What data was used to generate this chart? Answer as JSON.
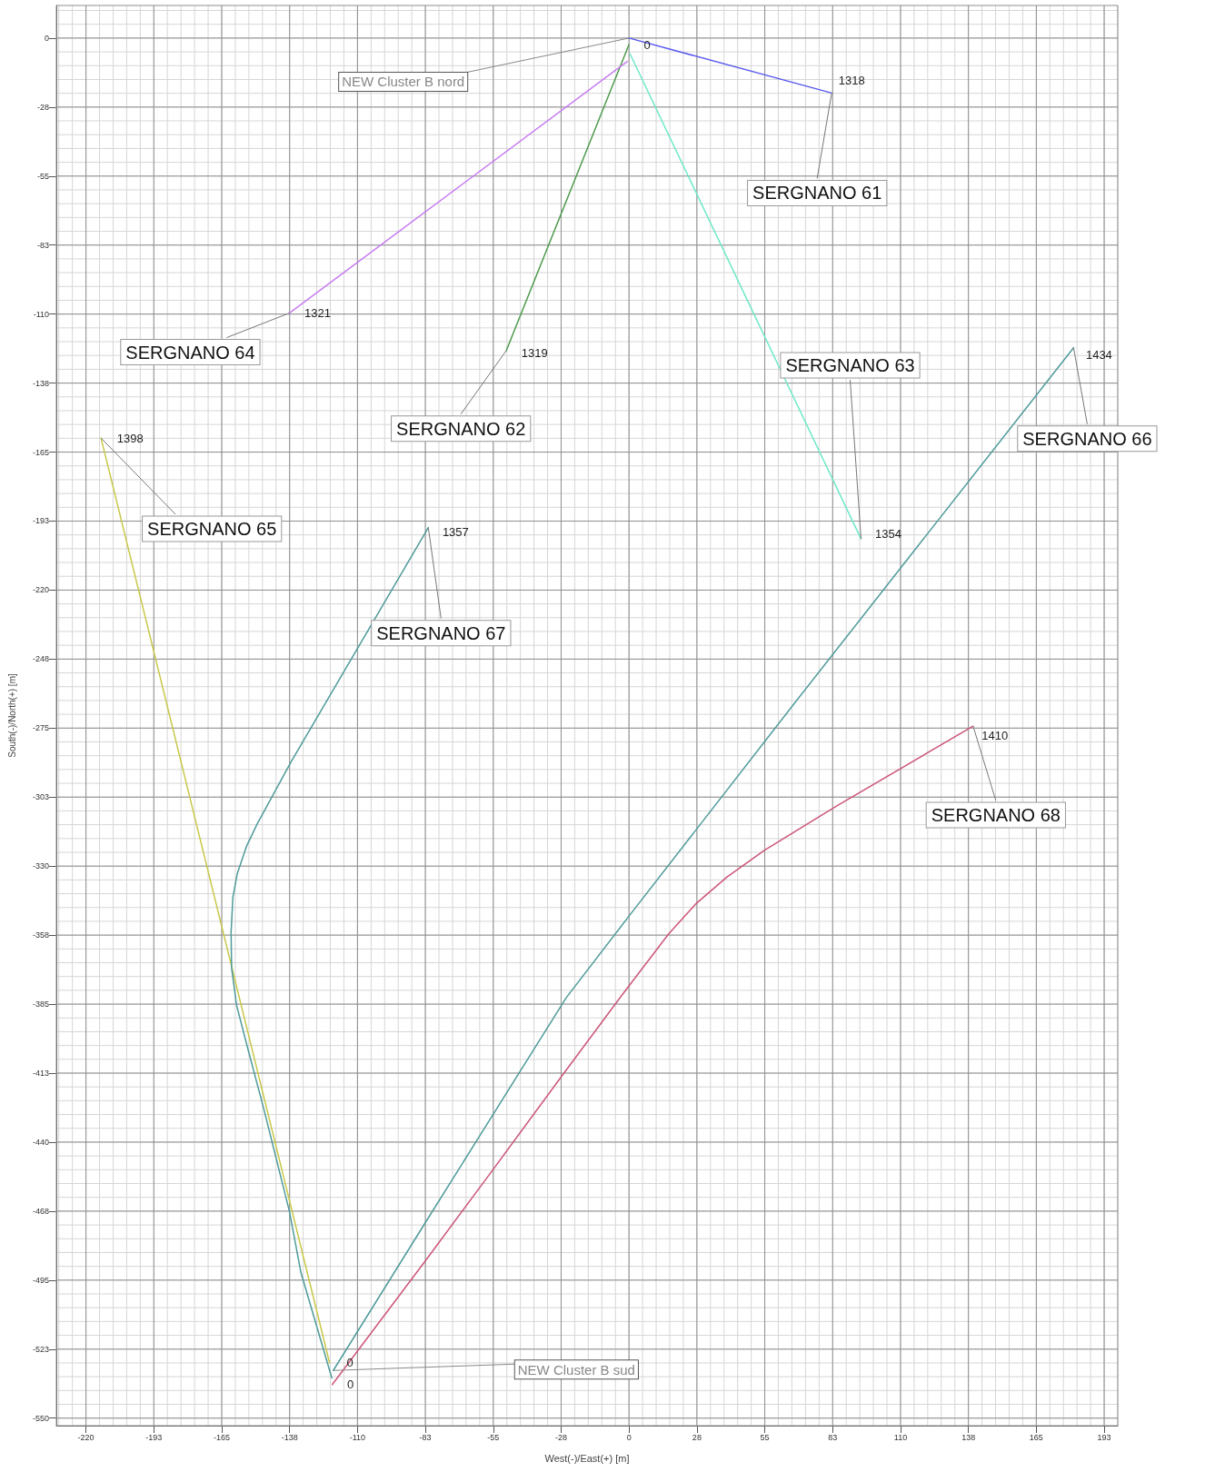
{
  "chart_data": {
    "type": "line",
    "xlabel": "West(-)/East(+) [m]",
    "ylabel": "South(-)/North(+) [m]",
    "xlim": [
      -232,
      198
    ],
    "ylim": [
      -553,
      13
    ],
    "xticks": [
      -220,
      {
        "value": -192.5,
        "label": "-193"
      },
      -165,
      {
        "value": -137.5,
        "label": "-138"
      },
      -110,
      {
        "value": -82.5,
        "label": "-83"
      },
      -55,
      {
        "value": -27.5,
        "label": "-28"
      },
      0,
      {
        "value": 27.5,
        "label": "28"
      },
      55,
      {
        "value": 82.5,
        "label": "83"
      },
      110,
      {
        "value": 137.5,
        "label": "138"
      },
      165,
      {
        "value": 192.5,
        "label": "193"
      }
    ],
    "yticks": [
      0,
      {
        "value": -27.5,
        "label": "-28"
      },
      -55,
      {
        "value": -82.5,
        "label": "-83"
      },
      -110,
      {
        "value": -137.5,
        "label": "-138"
      },
      -165,
      {
        "value": -192.5,
        "label": "-193"
      },
      -220,
      {
        "value": -247.5,
        "label": "-248"
      },
      -275,
      {
        "value": -302.5,
        "label": "-303"
      },
      -330,
      {
        "value": -357.5,
        "label": "-358"
      },
      -385,
      {
        "value": -412.5,
        "label": "-413"
      },
      -440,
      {
        "value": -467.5,
        "label": "-468"
      },
      -495,
      {
        "value": -522.5,
        "label": "-523"
      },
      -550
    ],
    "grid": true,
    "marker": "none",
    "line_style": "solid",
    "series": [
      {
        "name": "SERGNANO 61",
        "color": "#5b5bef",
        "x": [
          0,
          82.1
        ],
        "values": [
          0,
          -21.9
        ]
      },
      {
        "name": "SERGNANO 62",
        "color": "#4f9a4f",
        "x": [
          0,
          -49.7
        ],
        "values": [
          -2.6,
          -124.5
        ]
      },
      {
        "name": "SERGNANO 63",
        "color": "#6ee8c8",
        "x": [
          0.4,
          94.0
        ],
        "values": [
          -6.3,
          -199.6
        ]
      },
      {
        "name": "SERGNANO 64",
        "color": "#c77cf2",
        "x": [
          -0.7,
          -137.6
        ],
        "values": [
          -9.3,
          -109.6
        ]
      },
      {
        "name": "SERGNANO 65",
        "color": "#c8c84a",
        "x": [
          -121.3,
          -213.9
        ],
        "values": [
          -528.0,
          -159.4
        ]
      },
      {
        "name": "SERGNANO 66",
        "color": "#4f9a9a",
        "x": [
          -119.8,
          -81.7,
          -25.4,
          -0.7,
          68.3,
          180.1
        ],
        "values": [
          -531.0,
          -470.8,
          -382.4,
          -350.8,
          -263.5,
          -123.4
        ]
      },
      {
        "name": "SERGNANO 67",
        "color": "#4f9a9a",
        "x": [
          -120.4,
          -132.9,
          -137.6,
          -148.1,
          -154.7,
          -159.0,
          -161.0,
          -161.2,
          -160.5,
          -158.7,
          -155.0,
          -150.7,
          -136.9,
          -81.3
        ],
        "values": [
          -534.0,
          -492.0,
          -467.5,
          -426.2,
          -401.7,
          -385.4,
          -370.5,
          -356.4,
          -342.6,
          -333.0,
          -322.2,
          -313.3,
          -288.4,
          -195.1
        ]
      },
      {
        "name": "SERGNANO 68",
        "color": "#cc5577",
        "x": [
          -120.2,
          -82.4,
          -55.2,
          -26.9,
          -3.3,
          16.0,
          26.9,
          39.6,
          54.8,
          83.9,
          139.4
        ],
        "values": [
          -536.6,
          -487.2,
          -451.1,
          -413.2,
          -382.0,
          -357.1,
          -345.2,
          -334.4,
          -323.7,
          -306.2,
          -274.2
        ]
      }
    ],
    "annotations": [
      {
        "text": "NEW Cluster B nord",
        "x": 0,
        "y": 0
      },
      {
        "text": "NEW Cluster B sud",
        "x": -119.8,
        "y": -531.0
      },
      {
        "text": "0",
        "x": 0,
        "y": 0
      },
      {
        "text": "0",
        "x": -120.4,
        "y": -534.0
      },
      {
        "text": "0",
        "x": -120.2,
        "y": -536.6
      },
      {
        "text": "1318",
        "x": 82.1,
        "y": -21.9
      },
      {
        "text": "1319",
        "x": -49.7,
        "y": -124.5
      },
      {
        "text": "1354",
        "x": 94.0,
        "y": -199.6
      },
      {
        "text": "1321",
        "x": -137.6,
        "y": -109.6
      },
      {
        "text": "1398",
        "x": -213.9,
        "y": -159.4
      },
      {
        "text": "1434",
        "x": 180.1,
        "y": -123.4
      },
      {
        "text": "1357",
        "x": -81.3,
        "y": -195.1
      },
      {
        "text": "1410",
        "x": 139.4,
        "y": -274.2
      }
    ]
  }
}
